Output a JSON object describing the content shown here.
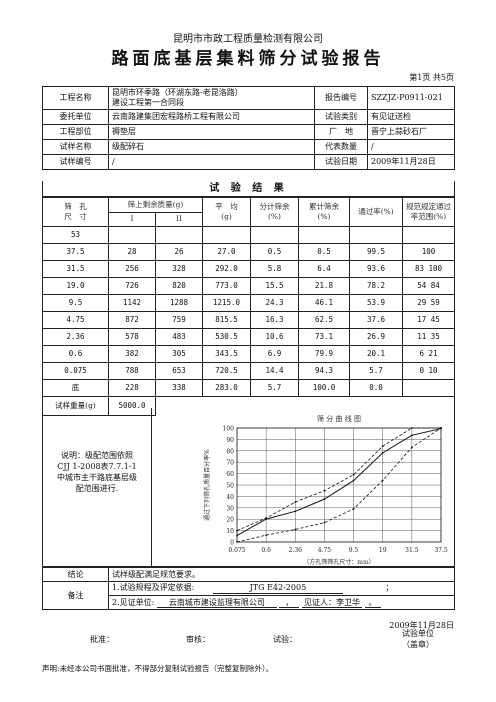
{
  "company": "昆明市市政工程质量检测有限公司",
  "title": "路面底基层集料筛分试验报告",
  "page_info": "第1页  共5页",
  "info_rows": [
    {
      "l1": "工程名称",
      "v1": "昆明市环季路（环湖东路-老昆洛路）\n建设工程第一合同段",
      "l2": "报告编号",
      "v2": "SZZJZ-P0911-021"
    },
    {
      "l1": "委托单位",
      "v1": "云南路建集团宏程路桥工程有限公司",
      "l2": "试验类别",
      "v2": "有见证送检"
    },
    {
      "l1": "工程部位",
      "v1": "褥垫层",
      "l2": "厂　地",
      "v2": "晋宁上蒜砂石厂"
    },
    {
      "l1": "试样名称",
      "v1": "级配碎石",
      "l2": "代表数量",
      "v2": "/"
    },
    {
      "l1": "试样编号",
      "v1": "/",
      "l2": "试验日期",
      "v2": "2009年11月28日"
    }
  ],
  "results_title": "试 验 结 果",
  "headers": {
    "sieve": "筛　孔\n尺　寸",
    "retained": "筛上剩余质量(g)",
    "r1": "I",
    "r2": "II",
    "avg": "平　均\n(g)",
    "partial": "分计筛余\n(%)",
    "cumulative": "累计筛余\n(%)",
    "passing": "通过率(%)",
    "spec": "规范规定通过\n率范围(%)"
  },
  "rows": [
    [
      "53",
      "",
      "",
      "",
      "",
      "",
      "",
      ""
    ],
    [
      "37.5",
      "28",
      "26",
      "27.0",
      "0.5",
      "0.5",
      "99.5",
      "100"
    ],
    [
      "31.5",
      "256",
      "328",
      "292.0",
      "5.8",
      "6.4",
      "93.6",
      "83 100"
    ],
    [
      "19.0",
      "726",
      "820",
      "773.0",
      "15.5",
      "21.8",
      "78.2",
      "54 84"
    ],
    [
      "9.5",
      "1142",
      "1288",
      "1215.0",
      "24.3",
      "46.1",
      "53.9",
      "29 59"
    ],
    [
      "4.75",
      "872",
      "759",
      "815.5",
      "16.3",
      "62.5",
      "37.6",
      "17 45"
    ],
    [
      "2.36",
      "578",
      "483",
      "530.5",
      "10.6",
      "73.1",
      "26.9",
      "11 35"
    ],
    [
      "0.6",
      "382",
      "305",
      "343.5",
      "6.9",
      "79.9",
      "20.1",
      "6 21"
    ],
    [
      "0.075",
      "788",
      "653",
      "720.5",
      "14.4",
      "94.3",
      "5.7",
      "0 10"
    ],
    [
      "底",
      "228",
      "338",
      "283.0",
      "5.7",
      "100.0",
      "0.0",
      ""
    ]
  ],
  "sample_weight_label": "试样重量(g)",
  "sample_weight_value": "5000.0",
  "note_text": "说明：级配范围依照\nCJJ 1-2008表7.7.1-1\n中城市主干路底基层级\n配范围进行.",
  "chart_data": {
    "type": "line",
    "title": "筛 分 曲 线 图",
    "ylabel": "通过下列筛孔质量百分率%",
    "xlabel": "（方孔筛筛孔尺寸：mm）",
    "categories": [
      "0.075",
      "0.6",
      "2.36",
      "4.75",
      "9.5",
      "19",
      "31.5",
      "37.5"
    ],
    "ylim": [
      0,
      100
    ],
    "yticks": [
      0,
      10,
      20,
      30,
      40,
      50,
      60,
      70,
      80,
      90,
      100
    ],
    "grid": true,
    "series": [
      {
        "values": [
          5.7,
          20.1,
          26.9,
          37.6,
          53.9,
          78.2,
          93.6,
          99.5
        ],
        "style": "solid"
      },
      {
        "values": [
          0,
          6,
          11,
          17,
          29,
          54,
          83,
          100
        ],
        "style": "dashed"
      },
      {
        "values": [
          10,
          21,
          35,
          45,
          59,
          84,
          100,
          100
        ],
        "style": "dashed"
      }
    ]
  },
  "conclusion_label": "结论",
  "conclusion_text": "试样级配满足规范要求。",
  "remarks_label": "备注",
  "remark1_prefix": "1.试验规程及评定依据:",
  "remark1_value": "JTG E42-2005",
  "remark1_suffix": "；",
  "remark2_prefix": "2.见证单位:",
  "remark2_unit": "云南城市建设监理有限公司",
  "remark2_sep": "，",
  "remark2_witness": "见证人：李卫华",
  "remark2_suffix": "。",
  "date": "2009年11月28日",
  "sign": {
    "approve": "批准：",
    "review": "审核：",
    "test": "试验："
  },
  "seal": "试验单位\n（盖章）",
  "footer_note": "声明:未经本公司书面批准，不得部分复制试验报告（完整复制除外）。"
}
